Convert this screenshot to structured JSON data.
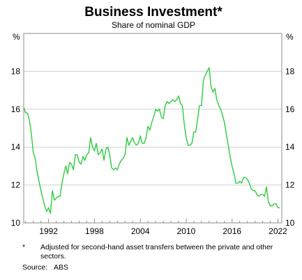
{
  "chart_data": {
    "type": "line",
    "title": "Business Investment*",
    "subtitle": "Share of nominal GDP",
    "ylabel_left": "%",
    "ylabel_right": "%",
    "ylim": [
      10,
      20
    ],
    "xlim": [
      1988.75,
      2022.5
    ],
    "yticks": [
      10,
      12,
      14,
      16,
      18
    ],
    "xticks": [
      1992,
      1998,
      2004,
      2010,
      2016,
      2022
    ],
    "grid": true,
    "series": [
      {
        "color": "#2ecc40",
        "points": [
          [
            1988.75,
            16.1
          ],
          [
            1989.0,
            15.8
          ],
          [
            1989.25,
            15.8
          ],
          [
            1989.5,
            15.4
          ],
          [
            1989.75,
            14.7
          ],
          [
            1990.0,
            13.7
          ],
          [
            1990.25,
            13.4
          ],
          [
            1990.5,
            12.7
          ],
          [
            1990.75,
            12.2
          ],
          [
            1991.0,
            11.7
          ],
          [
            1991.25,
            11.3
          ],
          [
            1991.5,
            10.9
          ],
          [
            1991.75,
            10.6
          ],
          [
            1992.0,
            10.8
          ],
          [
            1992.25,
            10.5
          ],
          [
            1992.5,
            11.7
          ],
          [
            1992.75,
            11.2
          ],
          [
            1993.0,
            11.3
          ],
          [
            1993.25,
            11.4
          ],
          [
            1993.5,
            11.4
          ],
          [
            1993.75,
            12.1
          ],
          [
            1994.0,
            12.6
          ],
          [
            1994.25,
            13.0
          ],
          [
            1994.5,
            12.6
          ],
          [
            1994.75,
            13.2
          ],
          [
            1995.0,
            13.1
          ],
          [
            1995.25,
            12.8
          ],
          [
            1995.5,
            13.6
          ],
          [
            1995.75,
            13.6
          ],
          [
            1996.0,
            13.2
          ],
          [
            1996.25,
            13.1
          ],
          [
            1996.5,
            13.5
          ],
          [
            1996.75,
            13.3
          ],
          [
            1997.0,
            13.6
          ],
          [
            1997.25,
            13.7
          ],
          [
            1997.5,
            14.5
          ],
          [
            1997.75,
            14.0
          ],
          [
            1998.0,
            13.8
          ],
          [
            1998.25,
            14.2
          ],
          [
            1998.5,
            13.6
          ],
          [
            1998.75,
            13.7
          ],
          [
            1999.0,
            13.9
          ],
          [
            1999.25,
            13.3
          ],
          [
            1999.5,
            13.9
          ],
          [
            1999.75,
            14.0
          ],
          [
            2000.0,
            13.6
          ],
          [
            2000.25,
            12.9
          ],
          [
            2000.5,
            12.8
          ],
          [
            2000.75,
            12.9
          ],
          [
            2001.0,
            12.8
          ],
          [
            2001.25,
            13.1
          ],
          [
            2001.5,
            13.3
          ],
          [
            2001.75,
            13.4
          ],
          [
            2002.0,
            13.6
          ],
          [
            2002.25,
            14.5
          ],
          [
            2002.5,
            14.1
          ],
          [
            2002.75,
            14.3
          ],
          [
            2003.0,
            14.5
          ],
          [
            2003.25,
            14.2
          ],
          [
            2003.5,
            14.1
          ],
          [
            2003.75,
            14.2
          ],
          [
            2004.0,
            14.6
          ],
          [
            2004.25,
            14.2
          ],
          [
            2004.5,
            14.2
          ],
          [
            2004.75,
            14.5
          ],
          [
            2005.0,
            15.1
          ],
          [
            2005.25,
            14.9
          ],
          [
            2005.5,
            15.3
          ],
          [
            2005.75,
            15.6
          ],
          [
            2006.0,
            16.0
          ],
          [
            2006.25,
            15.9
          ],
          [
            2006.5,
            16.0
          ],
          [
            2006.75,
            15.6
          ],
          [
            2007.0,
            15.5
          ],
          [
            2007.25,
            16.2
          ],
          [
            2007.5,
            16.4
          ],
          [
            2007.75,
            16.3
          ],
          [
            2008.0,
            16.4
          ],
          [
            2008.25,
            16.5
          ],
          [
            2008.5,
            16.4
          ],
          [
            2008.75,
            16.5
          ],
          [
            2009.0,
            16.7
          ],
          [
            2009.25,
            16.3
          ],
          [
            2009.5,
            16.2
          ],
          [
            2009.75,
            15.2
          ],
          [
            2010.0,
            14.5
          ],
          [
            2010.25,
            14.1
          ],
          [
            2010.5,
            14.1
          ],
          [
            2010.75,
            14.2
          ],
          [
            2011.0,
            14.8
          ],
          [
            2011.25,
            14.8
          ],
          [
            2011.5,
            15.5
          ],
          [
            2011.75,
            16.2
          ],
          [
            2012.0,
            16.2
          ],
          [
            2012.25,
            17.5
          ],
          [
            2012.5,
            17.8
          ],
          [
            2012.75,
            18.0
          ],
          [
            2013.0,
            18.2
          ],
          [
            2013.25,
            17.2
          ],
          [
            2013.5,
            16.9
          ],
          [
            2013.75,
            17.1
          ],
          [
            2014.0,
            16.5
          ],
          [
            2014.25,
            16.2
          ],
          [
            2014.5,
            16.0
          ],
          [
            2014.75,
            15.7
          ],
          [
            2015.0,
            15.3
          ],
          [
            2015.25,
            14.7
          ],
          [
            2015.5,
            14.1
          ],
          [
            2015.75,
            13.5
          ],
          [
            2016.0,
            13.0
          ],
          [
            2016.25,
            12.6
          ],
          [
            2016.5,
            12.1
          ],
          [
            2016.75,
            12.1
          ],
          [
            2017.0,
            12.2
          ],
          [
            2017.25,
            12.1
          ],
          [
            2017.5,
            12.4
          ],
          [
            2017.75,
            12.4
          ],
          [
            2018.0,
            12.3
          ],
          [
            2018.25,
            12.1
          ],
          [
            2018.5,
            11.8
          ],
          [
            2018.75,
            11.7
          ],
          [
            2019.0,
            11.7
          ],
          [
            2019.25,
            11.5
          ],
          [
            2019.5,
            11.4
          ],
          [
            2019.75,
            11.5
          ],
          [
            2020.0,
            11.5
          ],
          [
            2020.25,
            11.4
          ],
          [
            2020.5,
            11.9
          ],
          [
            2020.75,
            11.1
          ],
          [
            2021.0,
            10.9
          ],
          [
            2021.25,
            10.9
          ],
          [
            2021.5,
            11.0
          ],
          [
            2021.75,
            11.0
          ],
          [
            2022.0,
            10.8
          ],
          [
            2022.25,
            10.8
          ]
        ]
      }
    ]
  },
  "footnote": {
    "marker": "*",
    "text": "Adjusted for second-hand asset transfers between the private and other sectors."
  },
  "source": "Source:   ABS"
}
